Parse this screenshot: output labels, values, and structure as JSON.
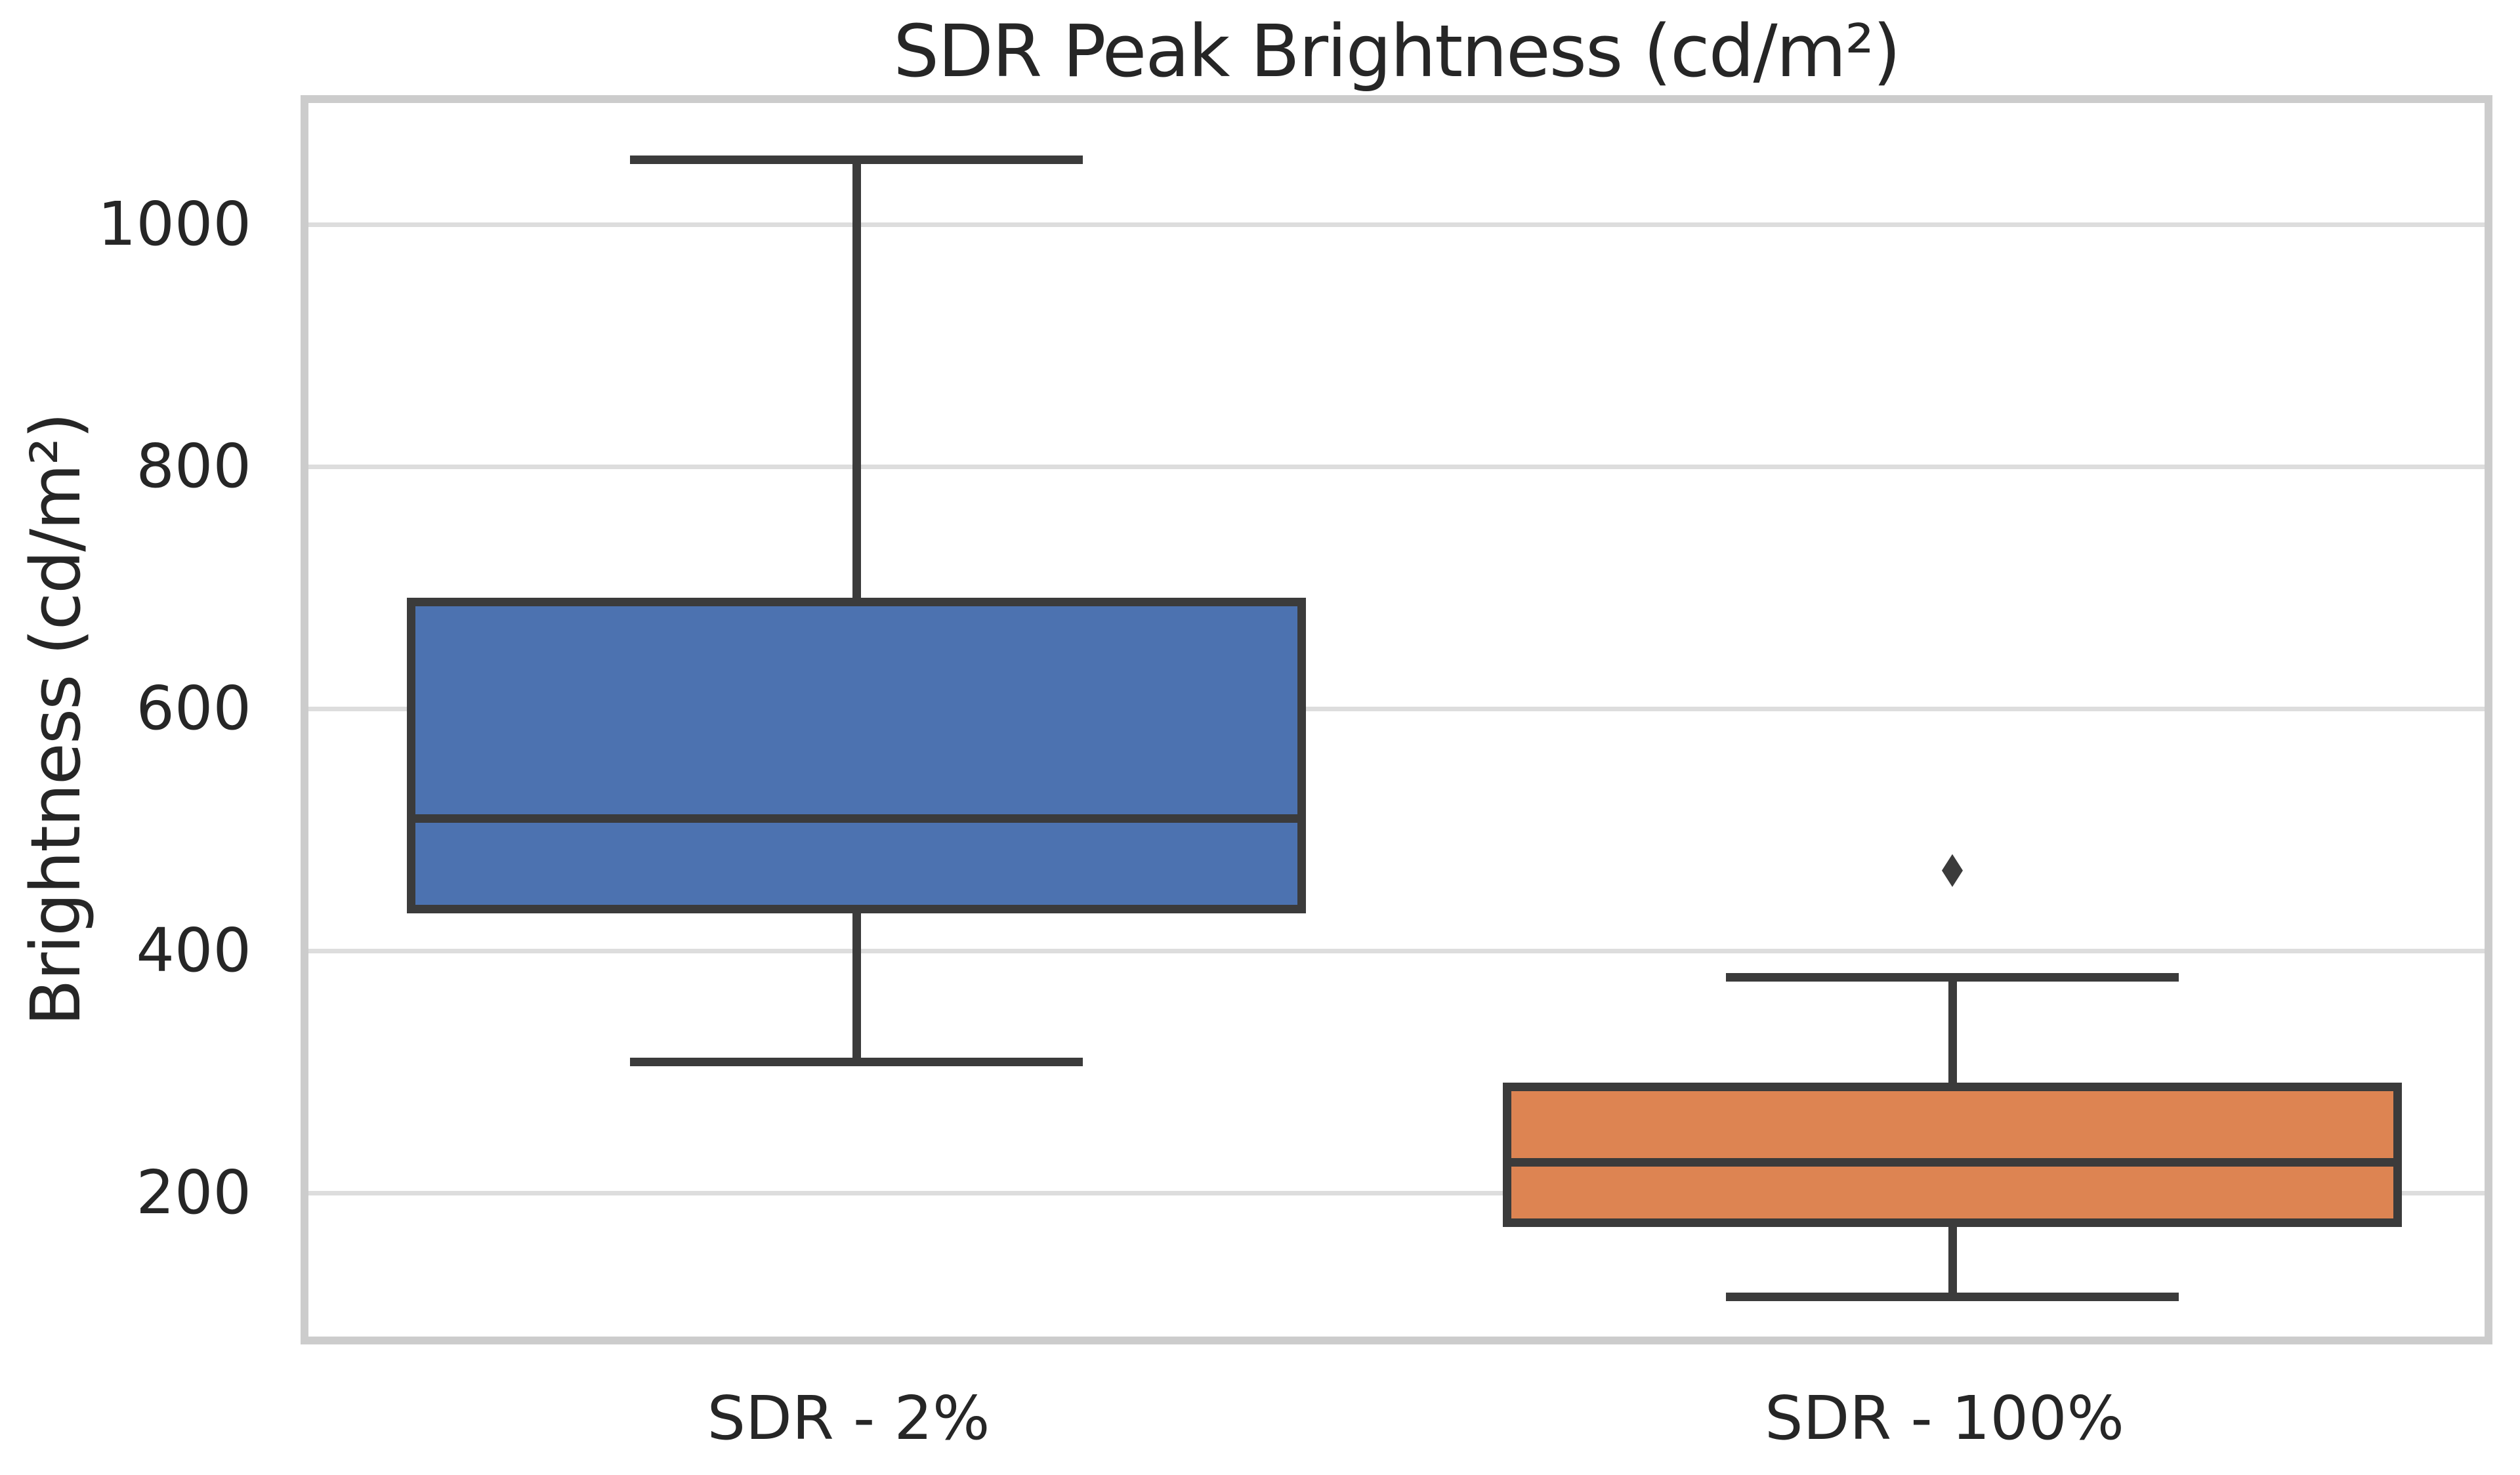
{
  "chart_data": {
    "type": "boxplot",
    "title": "SDR Peak Brightness (cd/m²)",
    "ylabel": "Brightness (cd/m²)",
    "xlabel": "",
    "categories": [
      "SDR - 2%",
      "SDR - 100%"
    ],
    "yticks": [
      200,
      400,
      600,
      800,
      1000
    ],
    "ylim": [
      75,
      1107
    ],
    "grid": "horizontal-only",
    "legend_position": "none",
    "series": [
      {
        "label": "SDR - 2%",
        "box_color": "#4C72B0",
        "whisker_low": 315,
        "q1": 441,
        "median": 516,
        "q3": 695,
        "whisker_high": 1060,
        "outliers": []
      },
      {
        "label": "SDR - 100%",
        "box_color": "#DD8452",
        "whisker_low": 121,
        "q1": 182,
        "median": 232,
        "q3": 294,
        "whisker_high": 385,
        "outliers": [
          473
        ]
      }
    ],
    "style": {
      "edge_color": "#3b3b3b",
      "grid_color": "#dddddd",
      "spine_color": "#cccccc",
      "text_color": "#262626",
      "background": "#ffffff"
    }
  }
}
